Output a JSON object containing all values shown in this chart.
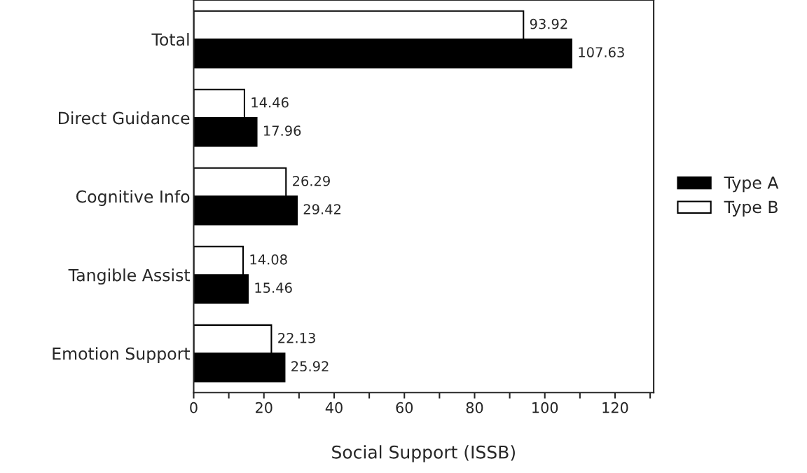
{
  "chart_data": {
    "type": "bar",
    "orientation": "horizontal",
    "xlabel": "Social Support (ISSB)",
    "categories": [
      "Total",
      "Direct Guidance",
      "Cognitive Info",
      "Tangible Assist",
      "Emotion Support"
    ],
    "series": [
      {
        "name": "Type A",
        "color": "#000000",
        "values": [
          107.63,
          17.96,
          29.42,
          15.46,
          25.92
        ]
      },
      {
        "name": "Type B",
        "color": "#ffffff",
        "values": [
          93.92,
          14.46,
          26.29,
          14.08,
          22.13
        ]
      }
    ],
    "xlim": [
      0,
      131
    ],
    "xticks": [
      0,
      {
        "value": 10,
        "label": null
      },
      20,
      {
        "value": 30,
        "label": null
      },
      40,
      {
        "value": 50,
        "label": null
      },
      60,
      {
        "value": 70,
        "label": null
      },
      80,
      {
        "value": 90,
        "label": null
      },
      100,
      {
        "value": 110,
        "label": null
      },
      120,
      {
        "value": 130,
        "label": null
      }
    ],
    "data_labels": true,
    "legend": "right",
    "grid": false
  }
}
